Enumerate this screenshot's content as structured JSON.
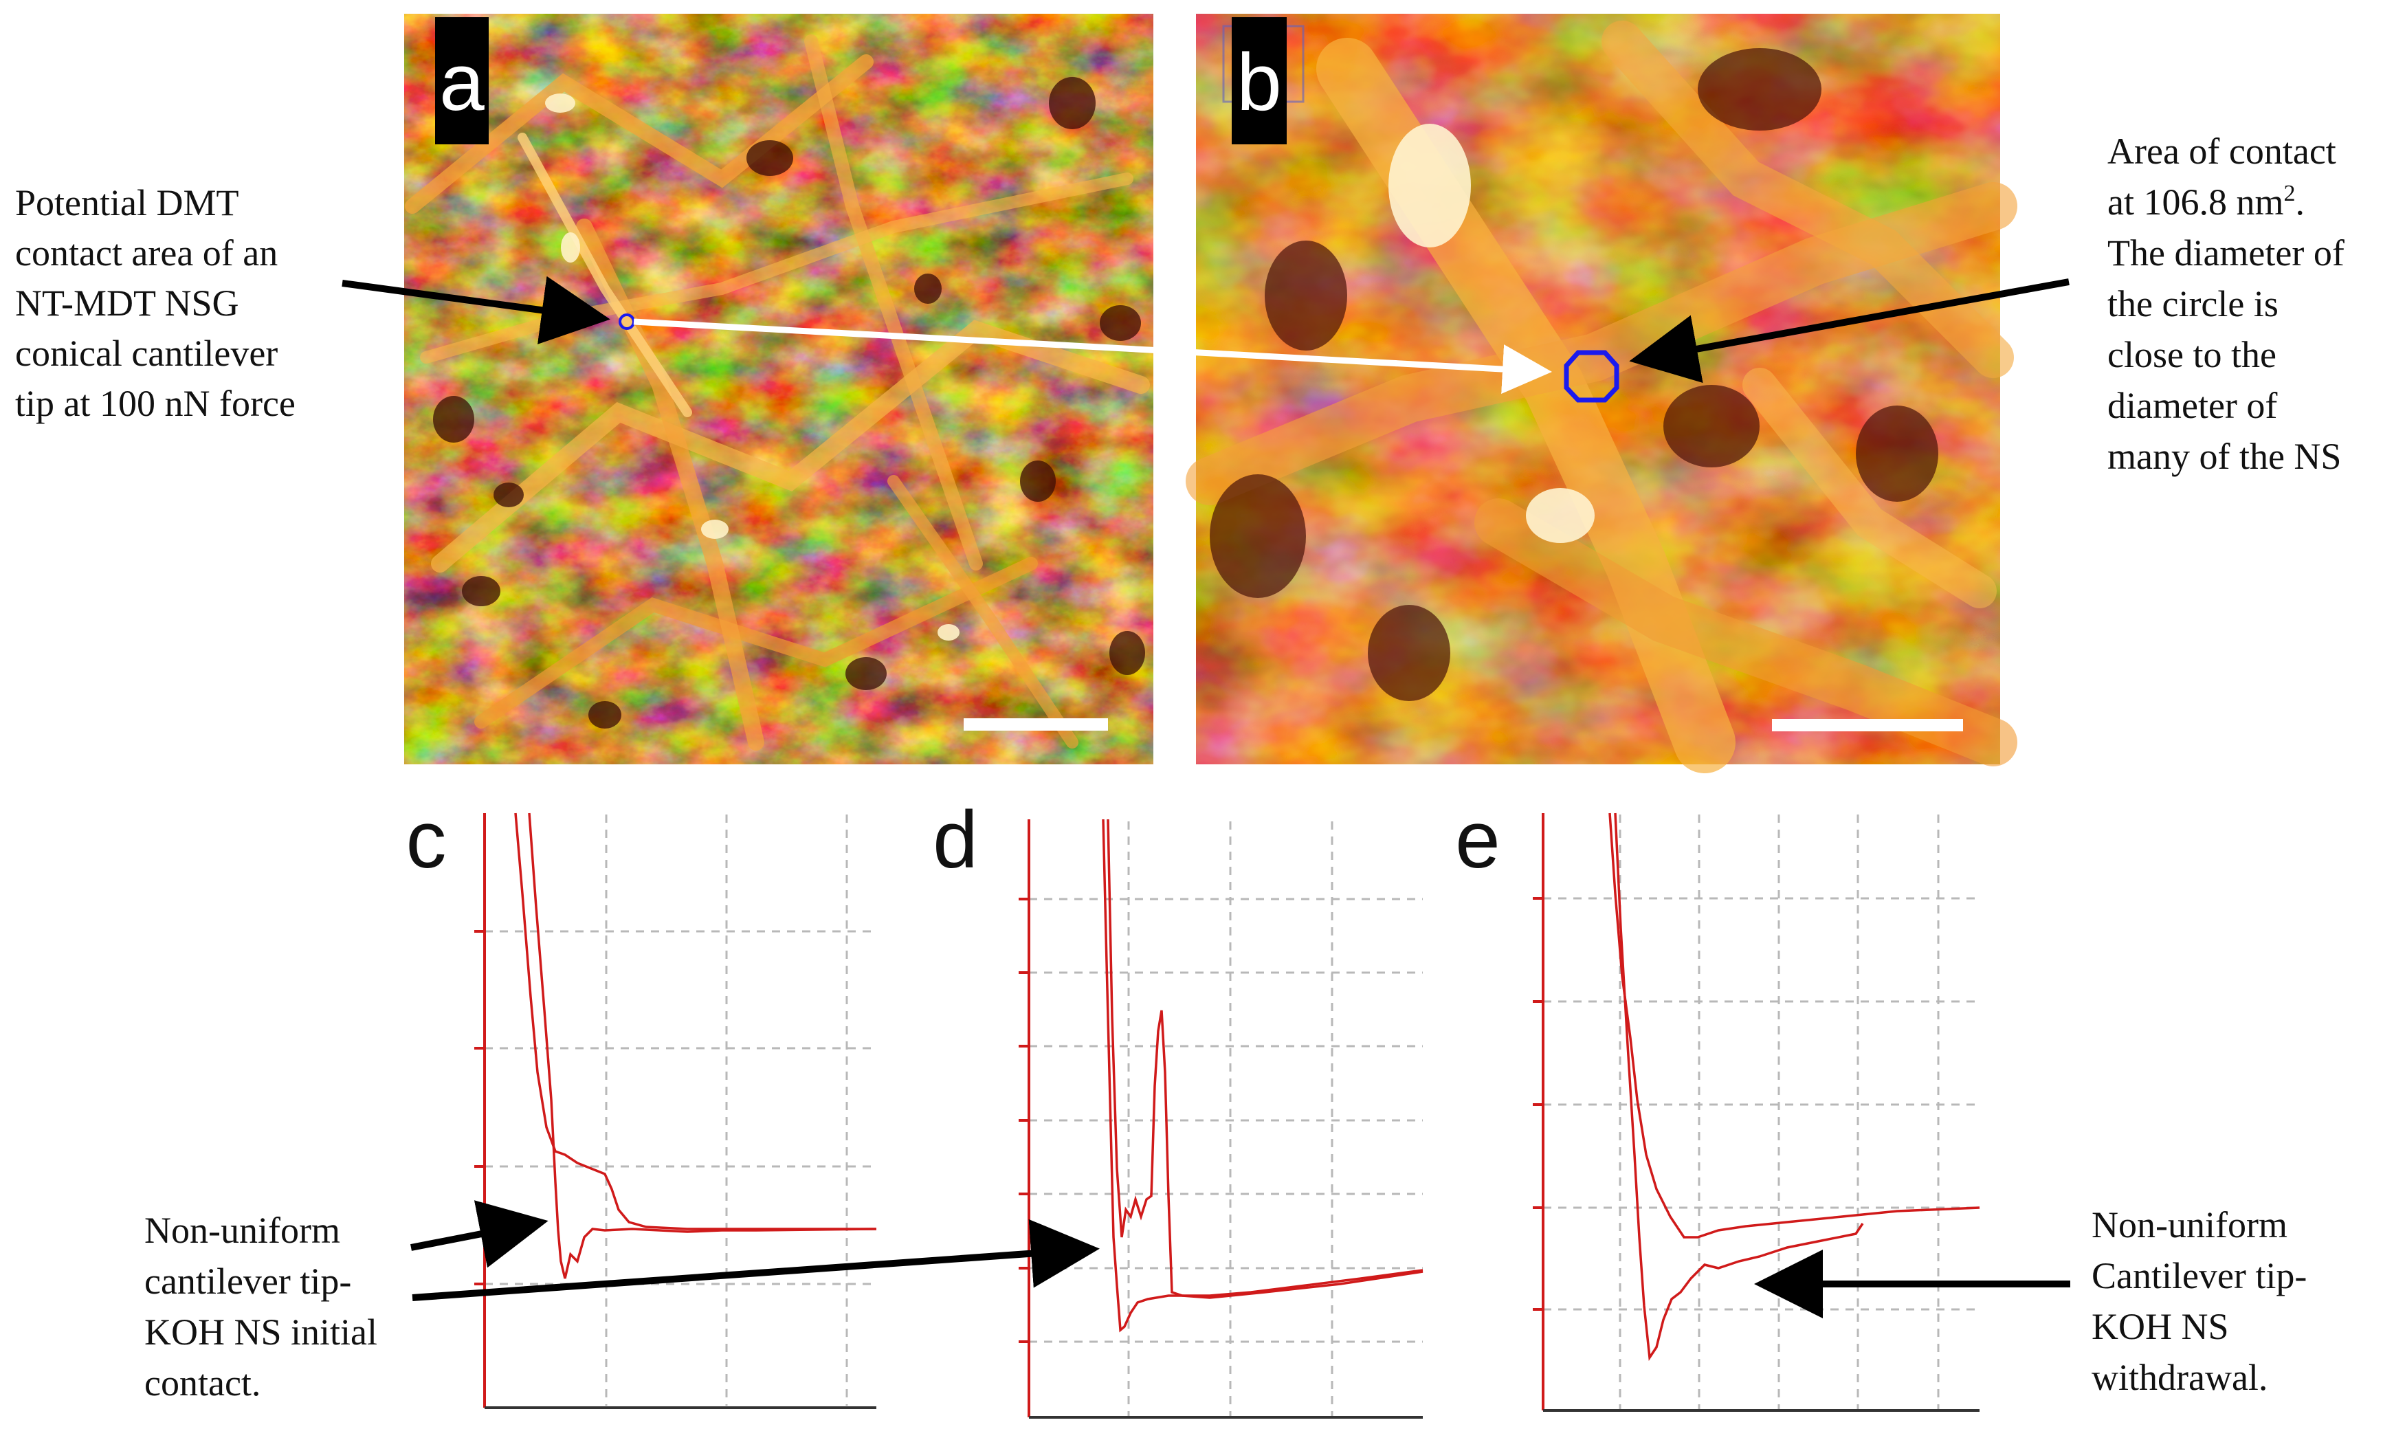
{
  "panels": {
    "a": {
      "letter": "a"
    },
    "b": {
      "letter": "b"
    },
    "c": {
      "letter": "c"
    },
    "d": {
      "letter": "d"
    },
    "e": {
      "letter": "e"
    }
  },
  "annotations": {
    "left_top": [
      "Potential DMT",
      "contact area of an",
      "NT-MDT NSG",
      "conical cantilever",
      "tip at 100 nN force"
    ],
    "right_top": {
      "line1": "Area of contact",
      "line2_prefix": "at 106.8 nm",
      "line2_sup": "2",
      "line2_suffix": ".",
      "rest": [
        "The diameter of",
        "the circle is",
        "close to the",
        "diameter of",
        "many of the NS"
      ]
    },
    "left_bottom": [
      "Non-uniform",
      "cantilever tip-",
      "KOH NS initial",
      "contact."
    ],
    "right_bottom": [
      "Non-uniform",
      "Cantilever tip-",
      "KOH NS",
      "withdrawal."
    ]
  },
  "colors": {
    "afm_dark": "#5a1a0c",
    "afm_mid": "#c8400f",
    "afm_bright": "#f7a23a",
    "afm_highlight": "#fff3cf",
    "curve_red": "#d01a1a",
    "axis_red": "#d01a1a",
    "grid": "#b8b8b8",
    "contact_circle": "#1a1aee",
    "arrow_black": "#000000",
    "arrow_white": "#ffffff"
  }
}
